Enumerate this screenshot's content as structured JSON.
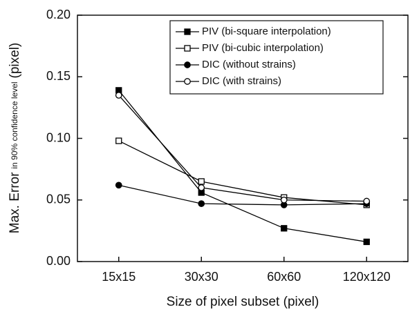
{
  "chart_data": {
    "type": "line",
    "xlabel": "Size of pixel subset (pixel)",
    "ylabel": [
      "Max. Error",
      "in 90% confidence level",
      "(pixel)"
    ],
    "categories": [
      "15x15",
      "30x30",
      "60x60",
      "120x120"
    ],
    "series": [
      {
        "name": "PIV (bi-square interpolation)",
        "color": "#000000",
        "marker": "square",
        "filled": true,
        "values": [
          0.139,
          0.056,
          0.027,
          0.016
        ]
      },
      {
        "name": "PIV (bi-cubic interpolation)",
        "color": "#000000",
        "marker": "square",
        "filled": false,
        "values": [
          0.098,
          0.065,
          0.052,
          0.046
        ]
      },
      {
        "name": "DIC (without strains)",
        "color": "#000000",
        "marker": "circle",
        "filled": true,
        "values": [
          0.062,
          0.047,
          0.046,
          0.047
        ]
      },
      {
        "name": "DIC (with strains)",
        "color": "#000000",
        "marker": "circle",
        "filled": false,
        "values": [
          0.135,
          0.06,
          0.05,
          0.049
        ]
      }
    ],
    "ylim": [
      0,
      0.2
    ],
    "yticks": [
      {
        "value": 0,
        "label": "0.00"
      },
      {
        "value": 0.05,
        "label": "0.05"
      },
      {
        "value": 0.1,
        "label": "0.10"
      },
      {
        "value": 0.15,
        "label": "0.15"
      },
      {
        "value": 0.2,
        "label": "0.20"
      }
    ],
    "grid": false,
    "legend": "upper right"
  }
}
